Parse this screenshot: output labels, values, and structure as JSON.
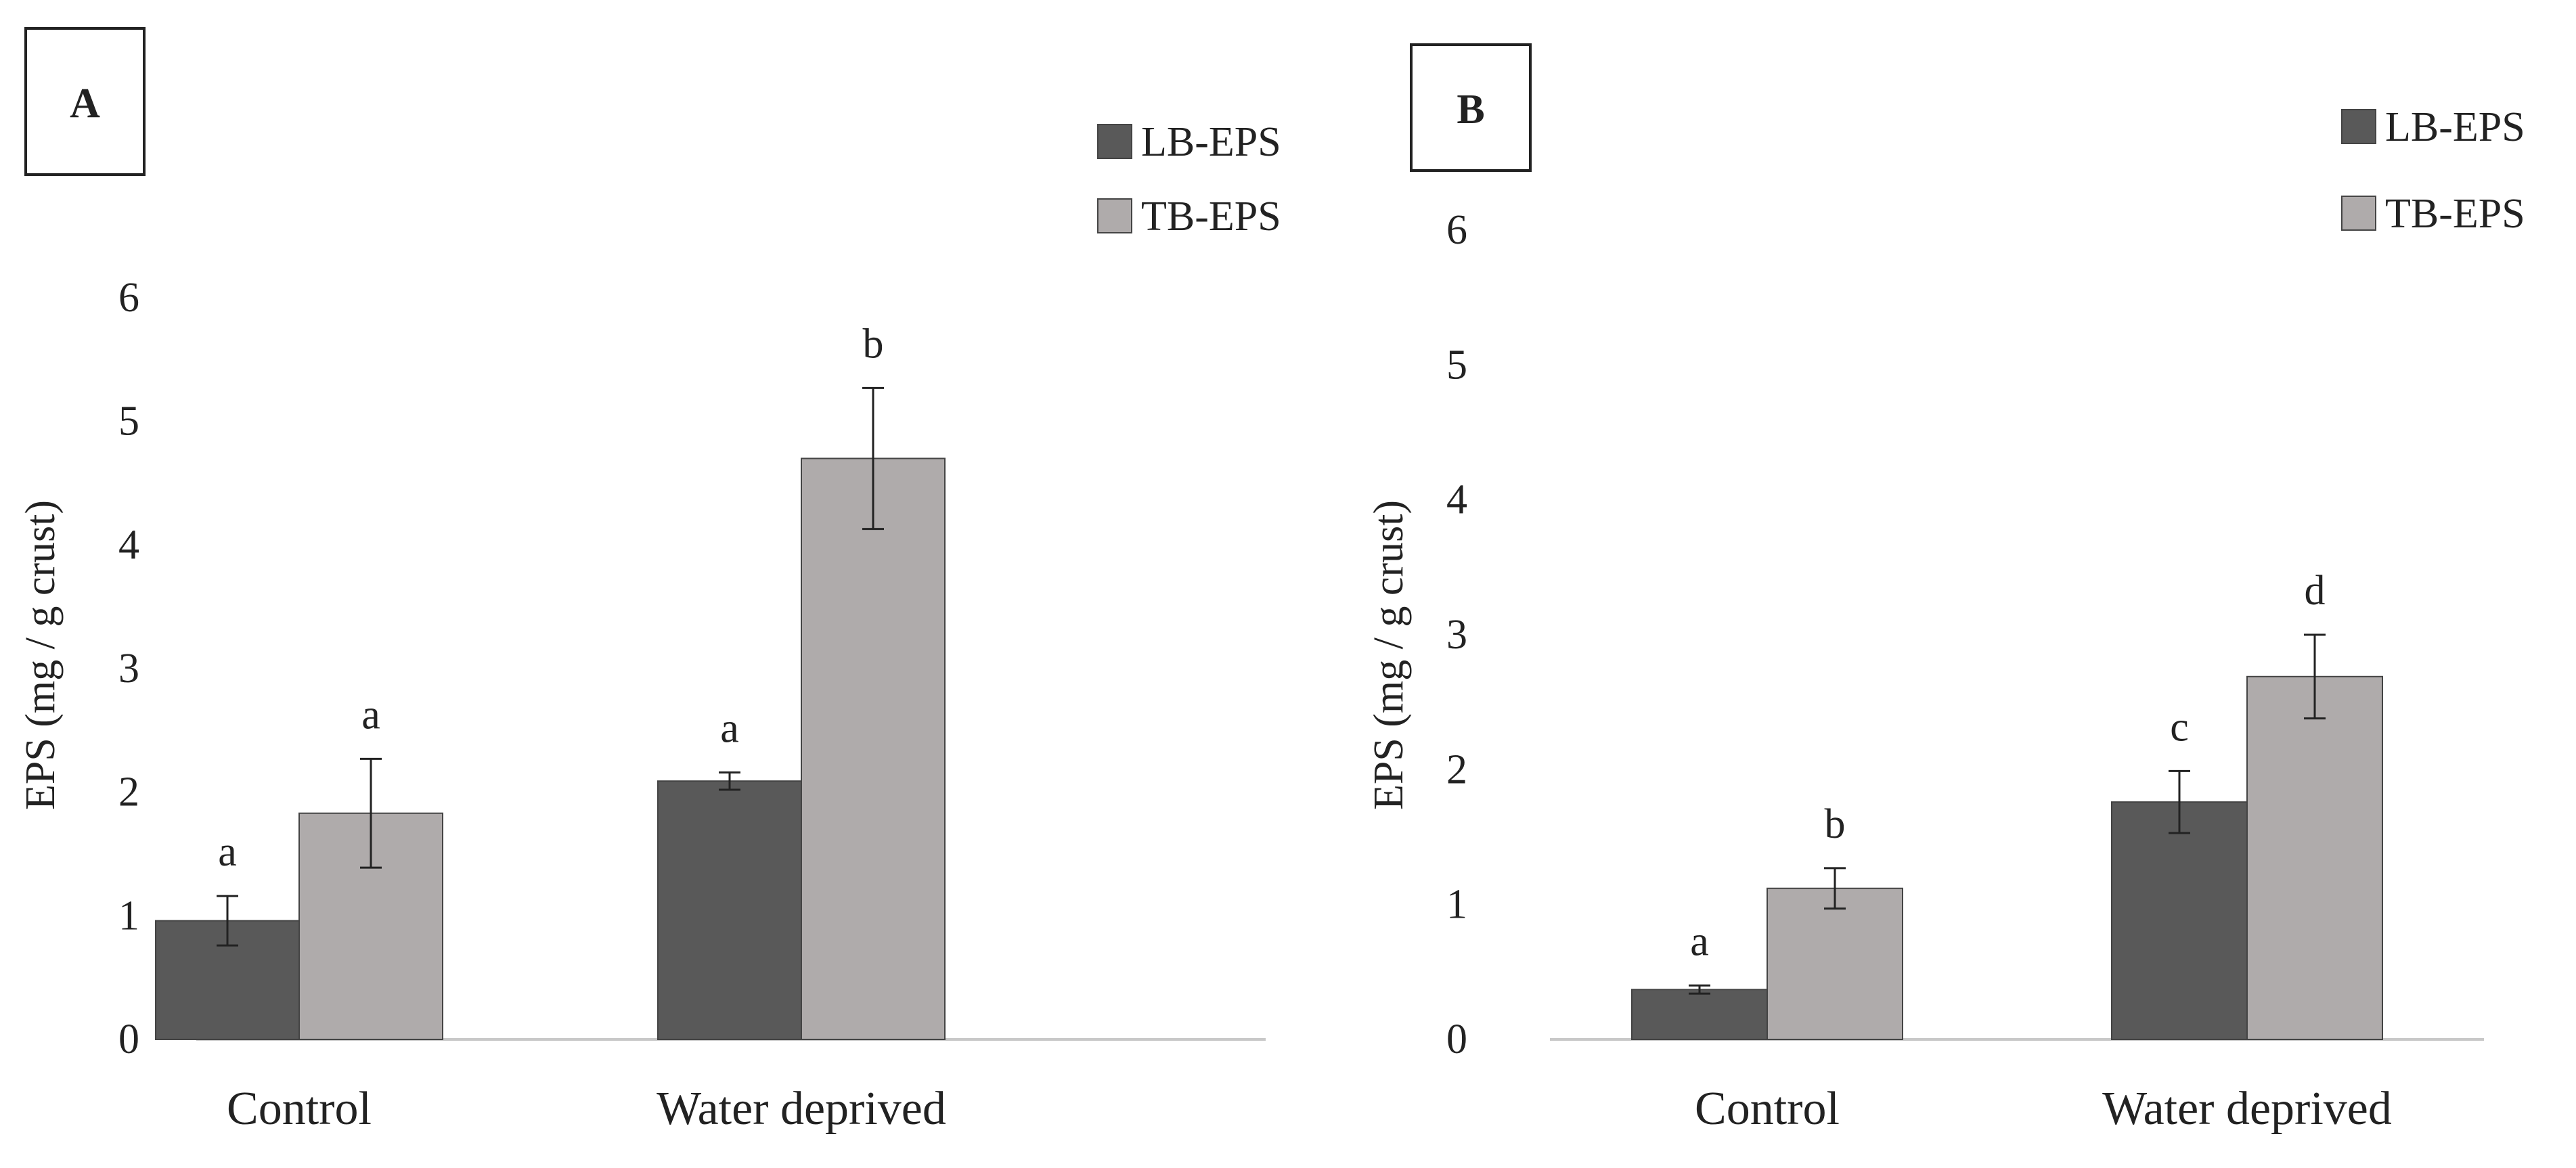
{
  "chart_data": [
    {
      "type": "bar",
      "panel_label": "A",
      "categories": [
        "Control",
        "Water deprived"
      ],
      "series": [
        {
          "name": "LB-EPS",
          "color": "#595959",
          "values": [
            0.96,
            2.09
          ],
          "errors": [
            0.2,
            0.07
          ],
          "letters": [
            "a",
            "a"
          ]
        },
        {
          "name": "TB-EPS",
          "color": "#afabab",
          "values": [
            1.83,
            4.7
          ],
          "errors": [
            0.44,
            0.57
          ],
          "letters": [
            "a",
            "b"
          ]
        }
      ],
      "ylabel": "EPS (mg  / g crust)",
      "xlabel": "",
      "ylim": [
        0,
        6
      ],
      "yticks": [
        "0",
        "1",
        "2",
        "3",
        "4",
        "5",
        "6"
      ],
      "grid": false,
      "legend_position": "top-right"
    },
    {
      "type": "bar",
      "panel_label": "B",
      "categories": [
        "Control",
        "Water deprived"
      ],
      "series": [
        {
          "name": "LB-EPS",
          "color": "#595959",
          "values": [
            0.37,
            1.76
          ],
          "errors": [
            0.03,
            0.23
          ],
          "letters": [
            "a",
            "c"
          ]
        },
        {
          "name": "TB-EPS",
          "color": "#afabab",
          "values": [
            1.12,
            2.69
          ],
          "errors": [
            0.15,
            0.31
          ],
          "letters": [
            "b",
            "d"
          ]
        }
      ],
      "ylabel": "EPS (mg / g crust)",
      "xlabel": "",
      "ylim": [
        0,
        6
      ],
      "yticks": [
        "0",
        "1",
        "2",
        "3",
        "4",
        "5",
        "6"
      ],
      "grid": false,
      "legend_position": "top-right"
    }
  ]
}
